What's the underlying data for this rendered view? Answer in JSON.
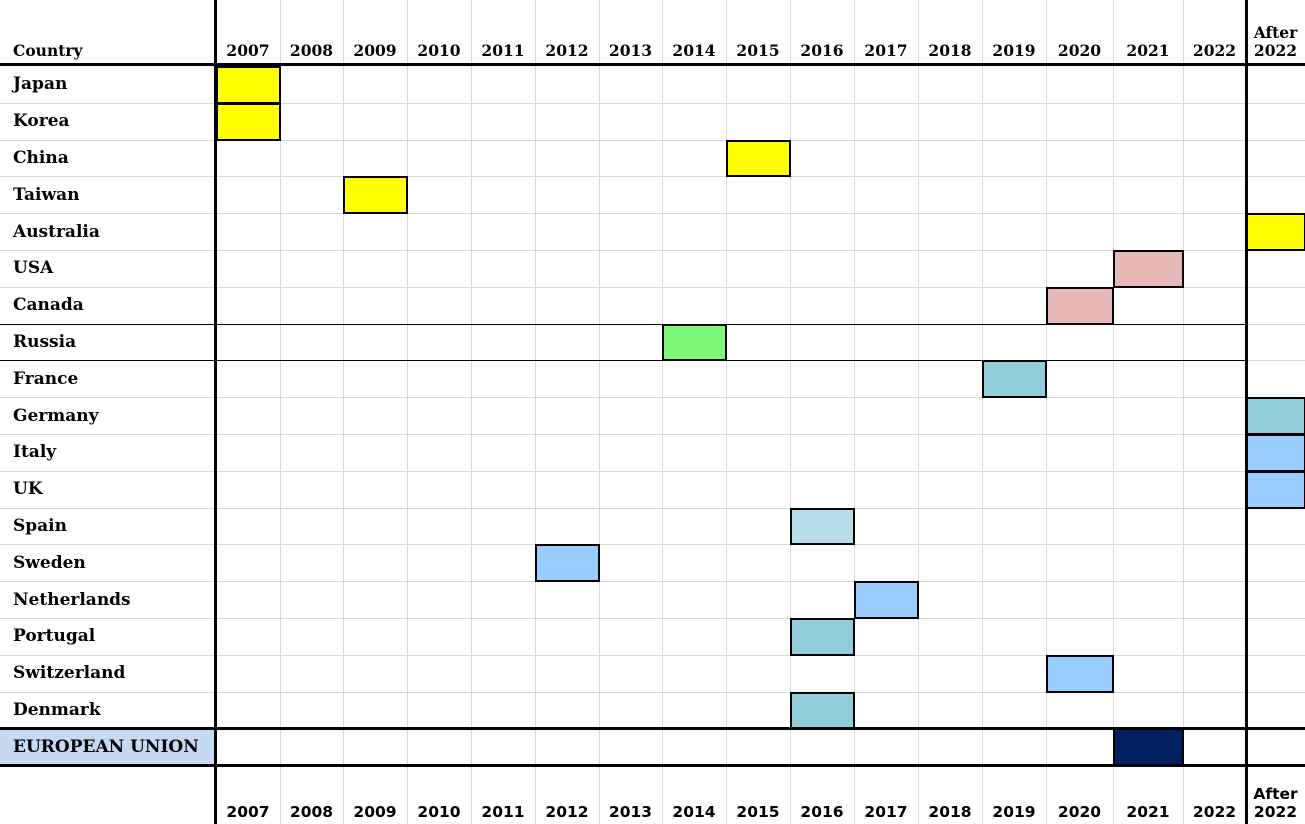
{
  "table": {
    "header": {
      "label": "Country",
      "columns": [
        "2007",
        "2008",
        "2009",
        "2010",
        "2011",
        "2012",
        "2013",
        "2014",
        "2015",
        "2016",
        "2017",
        "2018",
        "2019",
        "2020",
        "2021",
        "2022",
        "After 2022"
      ]
    },
    "rows": [
      {
        "country": "Japan",
        "year": "2007",
        "color": "#ffff00"
      },
      {
        "country": "Korea",
        "year": "2007",
        "color": "#ffff00"
      },
      {
        "country": "China",
        "year": "2015",
        "color": "#ffff00"
      },
      {
        "country": "Taiwan",
        "year": "2009",
        "color": "#ffff00"
      },
      {
        "country": "Australia",
        "year": "After 2022",
        "color": "#ffff00"
      },
      {
        "country": "USA",
        "year": "2021",
        "color": "#e6b8b7"
      },
      {
        "country": "Canada",
        "year": "2020",
        "color": "#e6b8b7"
      },
      {
        "country": "Russia",
        "year": "2014",
        "color": "#7ef77a"
      },
      {
        "country": "France",
        "year": "2019",
        "color": "#92cddc"
      },
      {
        "country": "Germany",
        "year": "After 2022",
        "color": "#92cddc"
      },
      {
        "country": "Italy",
        "year": "After 2022",
        "color": "#99ccff"
      },
      {
        "country": "UK",
        "year": "After 2022",
        "color": "#99ccff"
      },
      {
        "country": "Spain",
        "year": "2016",
        "color": "#b7dee8"
      },
      {
        "country": "Sweden",
        "year": "2012",
        "color": "#99ccff"
      },
      {
        "country": "Netherlands",
        "year": "2017",
        "color": "#99ccff"
      },
      {
        "country": "Portugal",
        "year": "2016",
        "color": "#92cddc"
      },
      {
        "country": "Switzerland",
        "year": "2020",
        "color": "#99ccff"
      },
      {
        "country": "Denmark",
        "year": "2016",
        "color": "#92cddc"
      },
      {
        "country": "EUROPEAN UNION",
        "year": "2021",
        "color": "#002060",
        "label_background": "#c5d9f1"
      }
    ],
    "footer": {
      "columns": [
        "2007",
        "2008",
        "2009",
        "2010",
        "2011",
        "2012",
        "2013",
        "2014",
        "2015",
        "2016",
        "2017",
        "2018",
        "2019",
        "2020",
        "2021",
        "2022",
        "After 2022"
      ]
    }
  }
}
